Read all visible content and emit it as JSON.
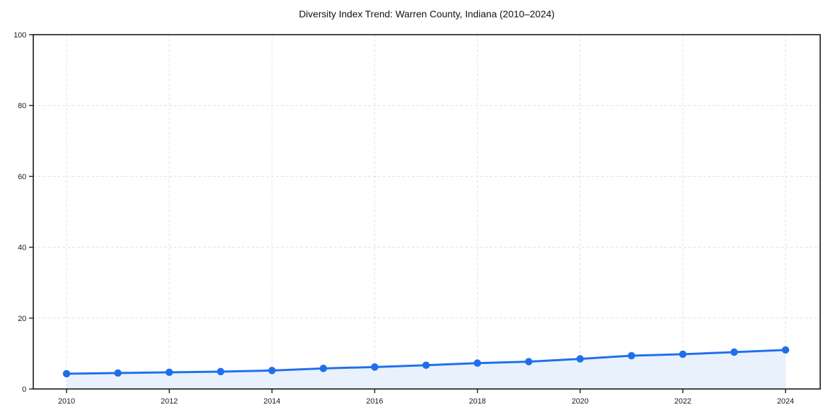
{
  "title": "Diversity Index Trend: Warren County, Indiana (2010–2024)",
  "chart_data": {
    "type": "line",
    "title": "Diversity Index Trend: Warren County, Indiana (2010–2024)",
    "xlabel": "",
    "ylabel": "",
    "x": [
      2010,
      2011,
      2012,
      2013,
      2014,
      2015,
      2016,
      2017,
      2018,
      2019,
      2020,
      2021,
      2022,
      2023,
      2024
    ],
    "series": [
      {
        "name": "Diversity Index",
        "values": [
          4.3,
          4.5,
          4.7,
          4.9,
          5.2,
          5.8,
          6.2,
          6.7,
          7.3,
          7.7,
          8.5,
          9.4,
          9.8,
          10.4,
          11.0
        ]
      }
    ],
    "xticks": [
      2010,
      2012,
      2014,
      2016,
      2018,
      2020,
      2022,
      2024
    ],
    "yticks": [
      0,
      20,
      40,
      60,
      80,
      100
    ],
    "ylim": [
      0,
      100
    ],
    "xlim_years": [
      2010,
      2024
    ],
    "grid": "dashed",
    "legend": "none",
    "area_fill": true,
    "colors": {
      "line": "#1f6feb",
      "marker": "#1f6feb",
      "fill": "#e9f1fc",
      "gridline": "#e1e1e1",
      "spine": "#141414",
      "text": "#1a1a1a"
    }
  }
}
